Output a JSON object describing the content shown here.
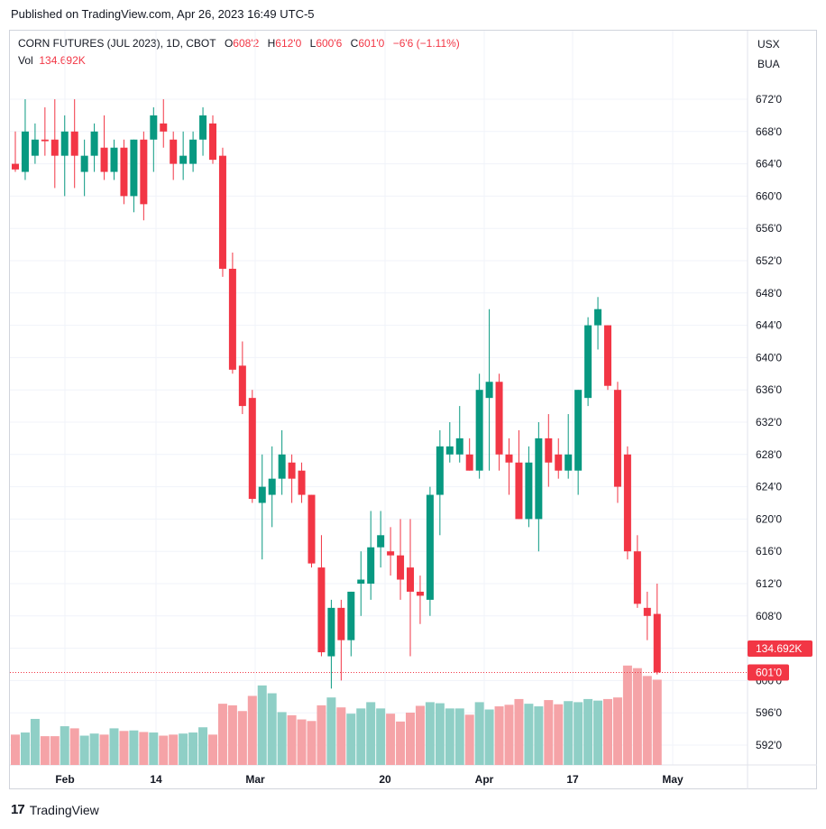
{
  "header": {
    "published": "Published on TradingView.com, Apr 26, 2023 16:49 UTC-5"
  },
  "legend": {
    "symbol": "CORN FUTURES (JUL 2023), 1D, CBOT",
    "o_label": "O",
    "o_value": "608'2",
    "h_label": "H",
    "h_value": "612'0",
    "l_label": "L",
    "l_value": "600'6",
    "c_label": "C",
    "c_value": "601'0",
    "change": "−6'6 (−1.11%)",
    "vol_label": "Vol",
    "vol_value": "134.692K"
  },
  "currency": {
    "line1": "USX",
    "line2": "BUA"
  },
  "footer": {
    "brand": "TradingView",
    "logo_glyph": "17"
  },
  "colors": {
    "up": "#089981",
    "down": "#f23645",
    "vol_up": "#8fcfc6",
    "vol_down": "#f5a3a7",
    "grid": "#f0f3fa"
  },
  "chart_data": {
    "type": "candlestick",
    "y_ticks": [
      "672'0",
      "668'0",
      "664'0",
      "660'0",
      "656'0",
      "652'0",
      "648'0",
      "644'0",
      "640'0",
      "636'0",
      "632'0",
      "628'0",
      "624'0",
      "620'0",
      "616'0",
      "612'0",
      "608'0",
      "604'0",
      "600'0",
      "596'0",
      "592'0"
    ],
    "x_ticks": [
      "Feb",
      "14",
      "Mar",
      "20",
      "Apr",
      "17",
      "May"
    ],
    "ylim": [
      589.5,
      674.5
    ],
    "last_price_label": "601'0",
    "volume_label": "134.692K",
    "candles": [
      {
        "o": 664,
        "h": 668,
        "l": 663,
        "c": 663.3,
        "v": 58
      },
      {
        "o": 663,
        "h": 672,
        "l": 662,
        "c": 668,
        "v": 62
      },
      {
        "o": 665,
        "h": 669,
        "l": 664,
        "c": 667,
        "v": 88
      },
      {
        "o": 667,
        "h": 671,
        "l": 665,
        "c": 666.8,
        "v": 55
      },
      {
        "o": 667,
        "h": 672,
        "l": 661,
        "c": 665,
        "v": 55
      },
      {
        "o": 665,
        "h": 670,
        "l": 660,
        "c": 668,
        "v": 74
      },
      {
        "o": 668,
        "h": 672,
        "l": 661,
        "c": 665,
        "v": 70
      },
      {
        "o": 663,
        "h": 667,
        "l": 660,
        "c": 665,
        "v": 56
      },
      {
        "o": 665,
        "h": 669,
        "l": 663,
        "c": 668,
        "v": 60
      },
      {
        "o": 666,
        "h": 670,
        "l": 662,
        "c": 663,
        "v": 58
      },
      {
        "o": 663,
        "h": 667,
        "l": 662,
        "c": 666,
        "v": 70
      },
      {
        "o": 666,
        "h": 667,
        "l": 659,
        "c": 660,
        "v": 65
      },
      {
        "o": 660,
        "h": 667,
        "l": 658,
        "c": 667,
        "v": 66
      },
      {
        "o": 667,
        "h": 668,
        "l": 657,
        "c": 659,
        "v": 63
      },
      {
        "o": 667,
        "h": 671,
        "l": 663,
        "c": 670,
        "v": 62
      },
      {
        "o": 669,
        "h": 672,
        "l": 666,
        "c": 668,
        "v": 56
      },
      {
        "o": 667,
        "h": 668,
        "l": 662,
        "c": 664,
        "v": 58
      },
      {
        "o": 664,
        "h": 668,
        "l": 662,
        "c": 665,
        "v": 60
      },
      {
        "o": 664,
        "h": 668,
        "l": 663,
        "c": 667,
        "v": 62
      },
      {
        "o": 667,
        "h": 671,
        "l": 665,
        "c": 670,
        "v": 72
      },
      {
        "o": 669,
        "h": 670,
        "l": 664,
        "c": 664.5,
        "v": 58
      },
      {
        "o": 665,
        "h": 666,
        "l": 650,
        "c": 651,
        "v": 117
      },
      {
        "o": 651,
        "h": 653,
        "l": 638,
        "c": 638.5,
        "v": 114
      },
      {
        "o": 639,
        "h": 642,
        "l": 633,
        "c": 634,
        "v": 103
      },
      {
        "o": 635,
        "h": 636,
        "l": 622,
        "c": 622.5,
        "v": 132
      },
      {
        "o": 622,
        "h": 628,
        "l": 615,
        "c": 624,
        "v": 152
      },
      {
        "o": 623,
        "h": 629,
        "l": 619,
        "c": 625,
        "v": 137
      },
      {
        "o": 625,
        "h": 631,
        "l": 623,
        "c": 628,
        "v": 101
      },
      {
        "o": 627,
        "h": 628,
        "l": 622,
        "c": 625,
        "v": 95
      },
      {
        "o": 626,
        "h": 627,
        "l": 622,
        "c": 623,
        "v": 87
      },
      {
        "o": 623,
        "h": 623,
        "l": 614,
        "c": 614.5,
        "v": 84
      },
      {
        "o": 614,
        "h": 618,
        "l": 603,
        "c": 603.5,
        "v": 114
      },
      {
        "o": 603,
        "h": 610,
        "l": 599,
        "c": 609,
        "v": 129
      },
      {
        "o": 609,
        "h": 610,
        "l": 600,
        "c": 605,
        "v": 110
      },
      {
        "o": 605,
        "h": 611,
        "l": 603,
        "c": 611,
        "v": 98
      },
      {
        "o": 612,
        "h": 616,
        "l": 608,
        "c": 612.5,
        "v": 108
      },
      {
        "o": 612,
        "h": 621,
        "l": 610,
        "c": 616.5,
        "v": 120
      },
      {
        "o": 616.5,
        "h": 621,
        "l": 614,
        "c": 618,
        "v": 108
      },
      {
        "o": 616,
        "h": 619,
        "l": 613,
        "c": 615.5,
        "v": 98
      },
      {
        "o": 615.5,
        "h": 620,
        "l": 610,
        "c": 612.5,
        "v": 83
      },
      {
        "o": 614,
        "h": 620,
        "l": 603,
        "c": 611,
        "v": 100
      },
      {
        "o": 611,
        "h": 613,
        "l": 607,
        "c": 610.5,
        "v": 113
      },
      {
        "o": 610,
        "h": 624,
        "l": 608,
        "c": 623,
        "v": 120
      },
      {
        "o": 623,
        "h": 631,
        "l": 618,
        "c": 629,
        "v": 118
      },
      {
        "o": 628,
        "h": 632,
        "l": 627,
        "c": 629,
        "v": 108
      },
      {
        "o": 628,
        "h": 634,
        "l": 627,
        "c": 630,
        "v": 108
      },
      {
        "o": 628,
        "h": 630,
        "l": 626,
        "c": 626,
        "v": 96
      },
      {
        "o": 626,
        "h": 638,
        "l": 625,
        "c": 636,
        "v": 120
      },
      {
        "o": 635,
        "h": 646,
        "l": 626,
        "c": 637,
        "v": 106
      },
      {
        "o": 637,
        "h": 638,
        "l": 626,
        "c": 628,
        "v": 112
      },
      {
        "o": 628,
        "h": 630,
        "l": 623,
        "c": 627,
        "v": 115
      },
      {
        "o": 627,
        "h": 631,
        "l": 620,
        "c": 620,
        "v": 126
      },
      {
        "o": 620,
        "h": 629,
        "l": 619,
        "c": 627,
        "v": 117
      },
      {
        "o": 620,
        "h": 632,
        "l": 616,
        "c": 630,
        "v": 112
      },
      {
        "o": 630,
        "h": 633,
        "l": 624,
        "c": 627,
        "v": 124
      },
      {
        "o": 628,
        "h": 630,
        "l": 625,
        "c": 626,
        "v": 116
      },
      {
        "o": 626,
        "h": 633,
        "l": 625,
        "c": 628,
        "v": 122
      },
      {
        "o": 626,
        "h": 636,
        "l": 623,
        "c": 636,
        "v": 120
      },
      {
        "o": 635,
        "h": 645,
        "l": 634,
        "c": 644,
        "v": 126
      },
      {
        "o": 644,
        "h": 647.5,
        "l": 641,
        "c": 646,
        "v": 123
      },
      {
        "o": 644,
        "h": 644,
        "l": 636,
        "c": 636.5,
        "v": 126
      },
      {
        "o": 636,
        "h": 637,
        "l": 622,
        "c": 624,
        "v": 129
      },
      {
        "o": 628,
        "h": 629,
        "l": 615,
        "c": 616,
        "v": 190
      },
      {
        "o": 616,
        "h": 618,
        "l": 609,
        "c": 609.5,
        "v": 185
      },
      {
        "o": 609,
        "h": 611,
        "l": 605,
        "c": 608,
        "v": 170
      },
      {
        "o": 608.25,
        "h": 612,
        "l": 600.75,
        "c": 601,
        "v": 163
      }
    ]
  }
}
